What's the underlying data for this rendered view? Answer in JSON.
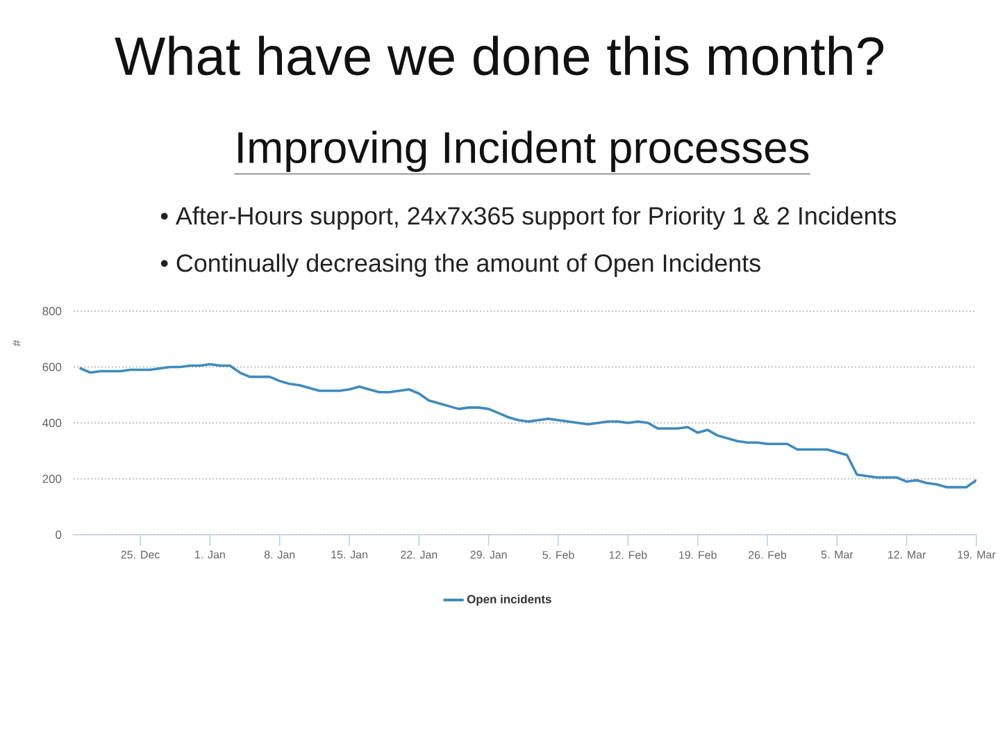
{
  "chart_data": {
    "type": "line",
    "title": "What have we done this month?",
    "subtitle": "Improving Incident processes",
    "annotations": [
      "• After-Hours support, 24x7x365 support for Priority 1 & 2 Incidents",
      "• Continually decreasing the amount of Open Incidents"
    ],
    "ylabel": "#",
    "categories": [
      null,
      null,
      null,
      null,
      null,
      null,
      "25. Dec",
      null,
      null,
      null,
      null,
      null,
      null,
      "1. Jan",
      null,
      null,
      null,
      null,
      null,
      null,
      "8. Jan",
      null,
      null,
      null,
      null,
      null,
      null,
      "15. Jan",
      null,
      null,
      null,
      null,
      null,
      null,
      "22. Jan",
      null,
      null,
      null,
      null,
      null,
      null,
      "29. Jan",
      null,
      null,
      null,
      null,
      null,
      null,
      "5. Feb",
      null,
      null,
      null,
      null,
      null,
      null,
      "12. Feb",
      null,
      null,
      null,
      null,
      null,
      null,
      "19. Feb",
      null,
      null,
      null,
      null,
      null,
      null,
      "26. Feb",
      null,
      null,
      null,
      null,
      null,
      null,
      "5. Mar",
      null,
      null,
      null,
      null,
      null,
      null,
      "12. Mar",
      null,
      null,
      null,
      null,
      null,
      null,
      "19. Mar"
    ],
    "series": [
      {
        "name": "Open incidents",
        "color": "#3f8bbd",
        "values": [
          595,
          580,
          585,
          585,
          585,
          590,
          590,
          590,
          595,
          600,
          600,
          605,
          605,
          610,
          605,
          605,
          580,
          565,
          565,
          565,
          550,
          540,
          535,
          525,
          515,
          515,
          515,
          520,
          530,
          520,
          510,
          510,
          515,
          520,
          505,
          480,
          470,
          460,
          450,
          455,
          455,
          450,
          435,
          420,
          410,
          405,
          410,
          415,
          410,
          405,
          400,
          395,
          400,
          405,
          405,
          400,
          405,
          400,
          380,
          380,
          380,
          385,
          365,
          375,
          355,
          345,
          335,
          330,
          330,
          325,
          325,
          325,
          305,
          305,
          305,
          305,
          295,
          285,
          215,
          210,
          205,
          205,
          205,
          190,
          195,
          185,
          180,
          170,
          170,
          170,
          195
        ]
      }
    ],
    "ylim": [
      0,
      800
    ],
    "yticks": [
      0,
      200,
      400,
      600,
      800
    ],
    "grid": "y",
    "legend": "bottom"
  }
}
